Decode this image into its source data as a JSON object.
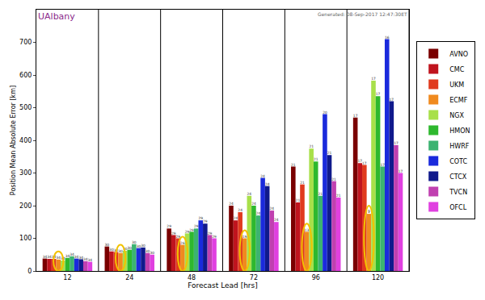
{
  "chart_data": {
    "type": "bar",
    "title": "UAlbany",
    "subtitle": "Generated: 08-Sep-2017 12:47:30ET",
    "x_label": "Forecast Lead [hrs]",
    "y_label": "Position Mean Absolute Error [km]",
    "categories": [
      "12",
      "24",
      "48",
      "72",
      "96",
      "120"
    ],
    "ylim": [
      0,
      800
    ],
    "yticks": [
      0,
      100,
      200,
      300,
      400,
      500,
      600,
      700
    ],
    "legend": "right",
    "grid": false,
    "series": [
      {
        "name": "AVNO",
        "color": "#7a0000",
        "values": [
          38,
          75,
          130,
          200,
          320,
          470
        ],
        "counts": [
          34,
          30,
          29,
          24,
          21,
          17
        ]
      },
      {
        "name": "CMC",
        "color": "#c0141e",
        "values": [
          37,
          60,
          110,
          155,
          210,
          330
        ],
        "counts": [
          34,
          30,
          29,
          24,
          21,
          17
        ]
      },
      {
        "name": "UKM",
        "color": "#e03a1e",
        "values": [
          37,
          58,
          100,
          180,
          265,
          325
        ],
        "counts": [
          34,
          30,
          29,
          24,
          21,
          17
        ]
      },
      {
        "name": "ECMF",
        "color": "#f08a1e",
        "values": [
          35,
          55,
          80,
          100,
          120,
          175
        ],
        "counts": [
          34,
          30,
          26,
          19,
          13,
          9
        ]
      },
      {
        "name": "NGX",
        "color": "#a8e04a",
        "values": [
          32,
          62,
          115,
          230,
          375,
          583
        ],
        "counts": [
          34,
          30,
          29,
          24,
          21,
          17
        ]
      },
      {
        "name": "HMON",
        "color": "#2eb82e",
        "values": [
          40,
          65,
          120,
          200,
          335,
          535
        ],
        "counts": [
          34,
          30,
          29,
          24,
          21,
          17
        ]
      },
      {
        "name": "HWRF",
        "color": "#3cb371",
        "values": [
          45,
          82,
          130,
          170,
          230,
          320
        ],
        "counts": [
          34,
          30,
          29,
          24,
          21,
          17
        ]
      },
      {
        "name": "COTC",
        "color": "#1a2adc",
        "values": [
          38,
          70,
          155,
          285,
          480,
          710
        ],
        "counts": [
          34,
          30,
          29,
          24,
          20,
          16
        ]
      },
      {
        "name": "CTCX",
        "color": "#101a8c",
        "values": [
          36,
          72,
          145,
          260,
          355,
          520
        ],
        "counts": [
          34,
          30,
          29,
          24,
          21,
          17
        ]
      },
      {
        "name": "TVCN",
        "color": "#c040b0",
        "values": [
          30,
          55,
          110,
          185,
          275,
          385
        ],
        "counts": [
          34,
          30,
          29,
          24,
          21,
          17
        ]
      },
      {
        "name": "OFCL",
        "color": "#e040e0",
        "values": [
          28,
          50,
          100,
          150,
          225,
          300
        ],
        "counts": [
          34,
          30,
          29,
          24,
          21,
          17
        ]
      }
    ]
  }
}
